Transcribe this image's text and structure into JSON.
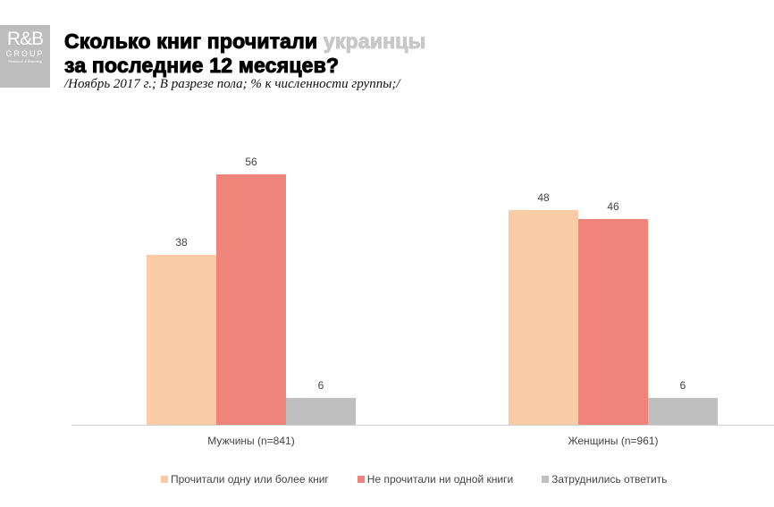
{
  "logo": {
    "line1": "R&B",
    "line2": "GROUP",
    "line3": "Research & Branding"
  },
  "title": {
    "part1": "Сколько книг прочитали ",
    "highlight": "украинцы",
    "part2": "за последние 12 месяцев?"
  },
  "subtitle": "/Ноябрь 2017 г.;  В разрезе пола; % к численности группы;/",
  "chart_data": {
    "type": "bar",
    "categories": [
      "Мужчины (n=841)",
      "Женщины (n=961)"
    ],
    "series": [
      {
        "name": "Прочитали одну или более книг",
        "values": [
          38,
          48
        ],
        "color": "#FBCBA6"
      },
      {
        "name": "Не прочитали ни одной книги",
        "values": [
          56,
          46
        ],
        "color": "#F0837A"
      },
      {
        "name": "Затруднились ответить",
        "values": [
          6,
          6
        ],
        "color": "#BFBFBF"
      }
    ],
    "ylim": [
      0,
      60
    ],
    "grid": false,
    "legend": "bottom"
  }
}
